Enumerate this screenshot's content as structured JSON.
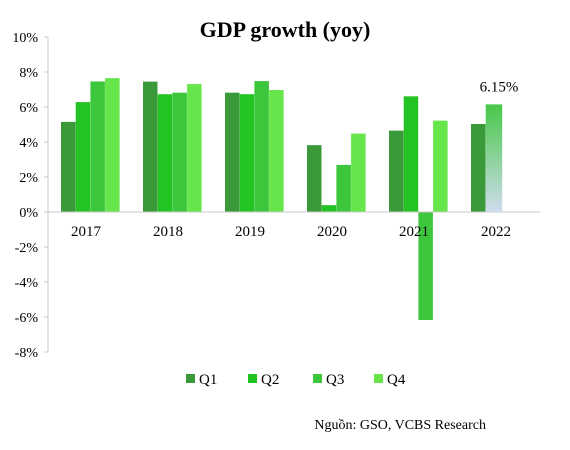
{
  "chart_data": {
    "type": "bar",
    "title": "GDP growth (yoy)",
    "categories": [
      "2017",
      "2018",
      "2019",
      "2020",
      "2021",
      "2022"
    ],
    "series": [
      {
        "name": "Q1",
        "color": "#3a9a3a",
        "values": [
          5.15,
          7.45,
          6.82,
          3.82,
          4.65,
          5.03
        ]
      },
      {
        "name": "Q2",
        "color": "#22c322",
        "values": [
          6.28,
          6.73,
          6.73,
          0.39,
          6.61,
          null
        ]
      },
      {
        "name": "Q3",
        "color": "#3cc63c",
        "values": [
          7.46,
          6.82,
          7.48,
          2.69,
          -6.17,
          null
        ]
      },
      {
        "name": "Q4",
        "color": "#66e64a",
        "values": [
          7.65,
          7.31,
          6.97,
          4.48,
          5.22,
          null
        ]
      }
    ],
    "annotations": [
      {
        "text": "6.15%",
        "category": "2022",
        "value": 6.15,
        "color_top": "#48c848",
        "color_bottom": "#cfdcee"
      }
    ],
    "yticks": [
      "10%",
      "8%",
      "6%",
      "4%",
      "2%",
      "0%",
      "-2%",
      "-4%",
      "-6%",
      "-8%"
    ],
    "ylim": [
      -8,
      10
    ],
    "xlabel": "",
    "ylabel": "",
    "legend_position": "bottom",
    "grid": false
  },
  "source_note": "Nguồn: GSO, VCBS Research"
}
